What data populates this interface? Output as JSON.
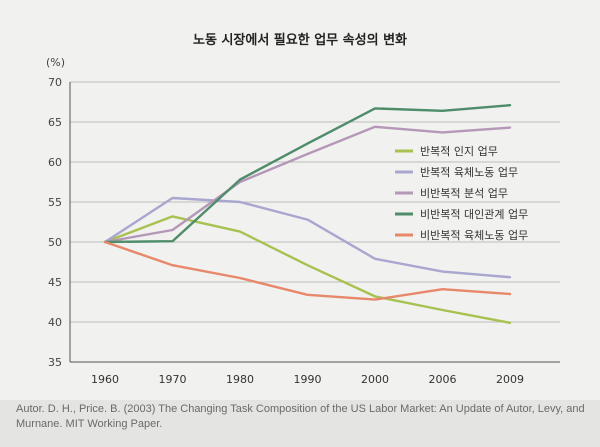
{
  "chart_data": {
    "type": "line",
    "title": "노동 시장에서 필요한 업무 속성의 변화",
    "ylabel": "(%)",
    "xlabel": "",
    "x": [
      "1960",
      "1970",
      "1980",
      "1990",
      "2000",
      "2006",
      "2009"
    ],
    "ylim": [
      35,
      70
    ],
    "yticks": [
      35,
      40,
      45,
      50,
      55,
      60,
      65,
      70
    ],
    "grid": true,
    "legend_position": "right",
    "series": [
      {
        "name": "반복적 인지 업무",
        "color": "#a7c250",
        "values": [
          50,
          53.2,
          51.3,
          47.1,
          43.2,
          41.5,
          39.9
        ]
      },
      {
        "name": "반복적 육체노동 업무",
        "color": "#a9a6cf",
        "values": [
          50,
          55.5,
          55.0,
          52.8,
          47.9,
          46.3,
          45.6
        ]
      },
      {
        "name": "비반복적 분석 업무",
        "color": "#b597b8",
        "values": [
          50,
          51.5,
          57.5,
          61.0,
          64.4,
          63.7,
          64.3
        ]
      },
      {
        "name": "비반복적 대인관계 업무",
        "color": "#4e8c6a",
        "values": [
          50,
          50.1,
          57.8,
          62.3,
          66.7,
          66.4,
          67.1
        ]
      },
      {
        "name": "비반복적 육체노동 업무",
        "color": "#e8886a",
        "values": [
          50,
          47.1,
          45.5,
          43.4,
          42.8,
          44.1,
          43.5
        ]
      }
    ]
  },
  "caption": "Autor. D. H., Price. B. (2003) The Changing Task Composition of the US Labor Market: An Update of Autor, Levy, and Murnane. MIT Working Paper."
}
